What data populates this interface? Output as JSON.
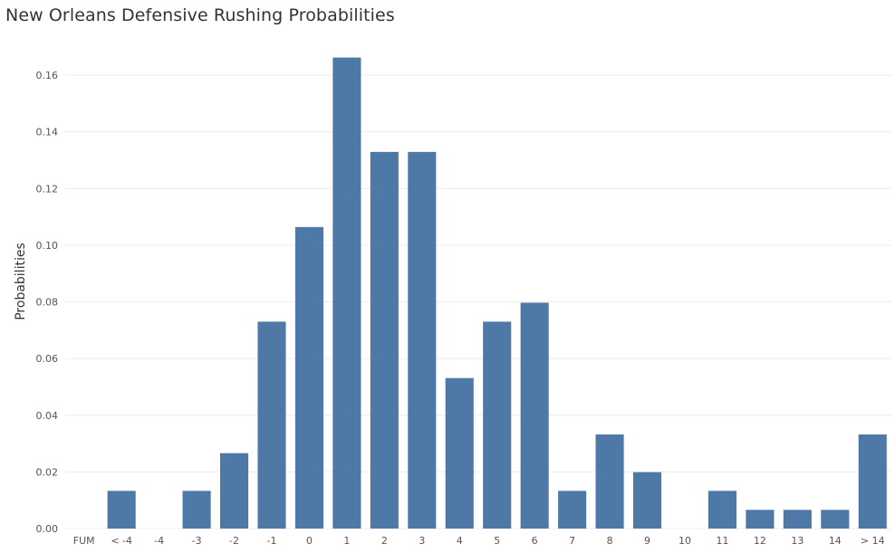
{
  "chart_data": {
    "type": "bar",
    "title": "New Orleans Defensive Rushing Probabilities",
    "xlabel": "",
    "ylabel": "Probabilities",
    "categories": [
      "FUM",
      "< -4",
      "-4",
      "-3",
      "-2",
      "-1",
      "0",
      "1",
      "2",
      "3",
      "4",
      "5",
      "6",
      "7",
      "8",
      "9",
      "10",
      "11",
      "12",
      "13",
      "14",
      "> 14"
    ],
    "values": [
      0.0,
      0.0133,
      0.0,
      0.0133,
      0.0266,
      0.073,
      0.1064,
      0.1662,
      0.1329,
      0.1329,
      0.0531,
      0.073,
      0.0797,
      0.0133,
      0.0332,
      0.0199,
      0.0,
      0.0133,
      0.0066,
      0.0066,
      0.0066,
      0.0332
    ],
    "yticks": [
      "0.00",
      "0.02",
      "0.04",
      "0.06",
      "0.08",
      "0.10",
      "0.12",
      "0.14",
      "0.16"
    ],
    "ylim": [
      0,
      0.175
    ],
    "grid": true,
    "bar_color": "#4e79a7"
  }
}
